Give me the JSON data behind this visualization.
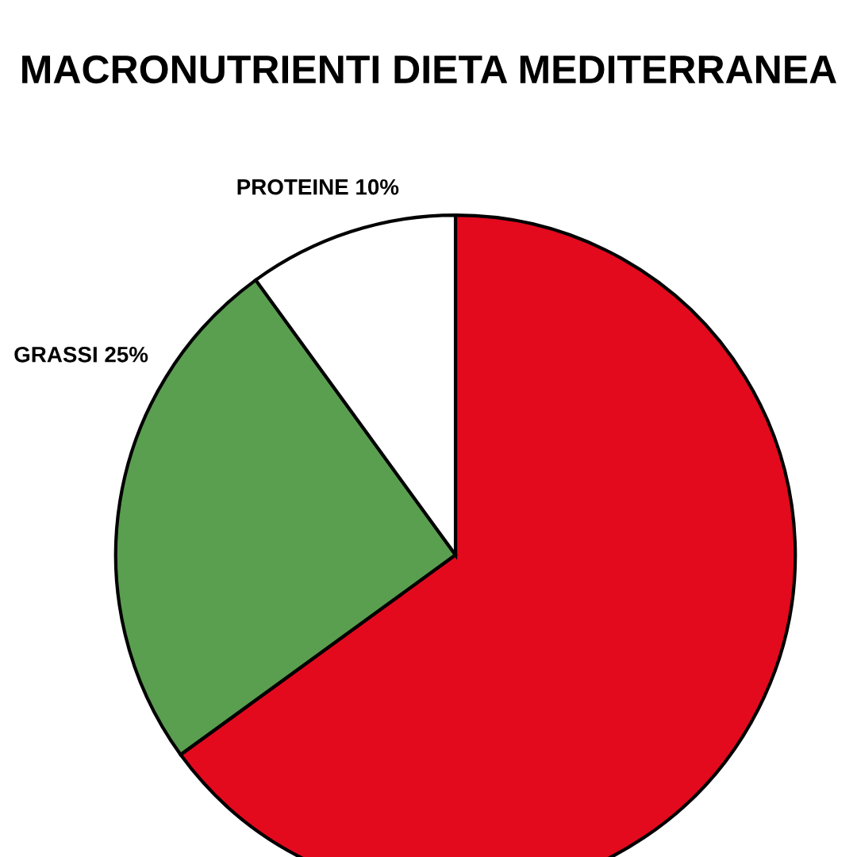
{
  "chart_data": {
    "type": "pie",
    "title": "MACRONUTRIENTI DIETA MEDITERRANEA",
    "categories": [
      null,
      "GRASSI",
      "PROTEINE"
    ],
    "values": [
      65,
      25,
      10
    ],
    "value_labels": [
      null,
      "25%",
      "10%"
    ],
    "colors": [
      "#e30a1e",
      "#5a9e50",
      "#ffffff"
    ]
  }
}
